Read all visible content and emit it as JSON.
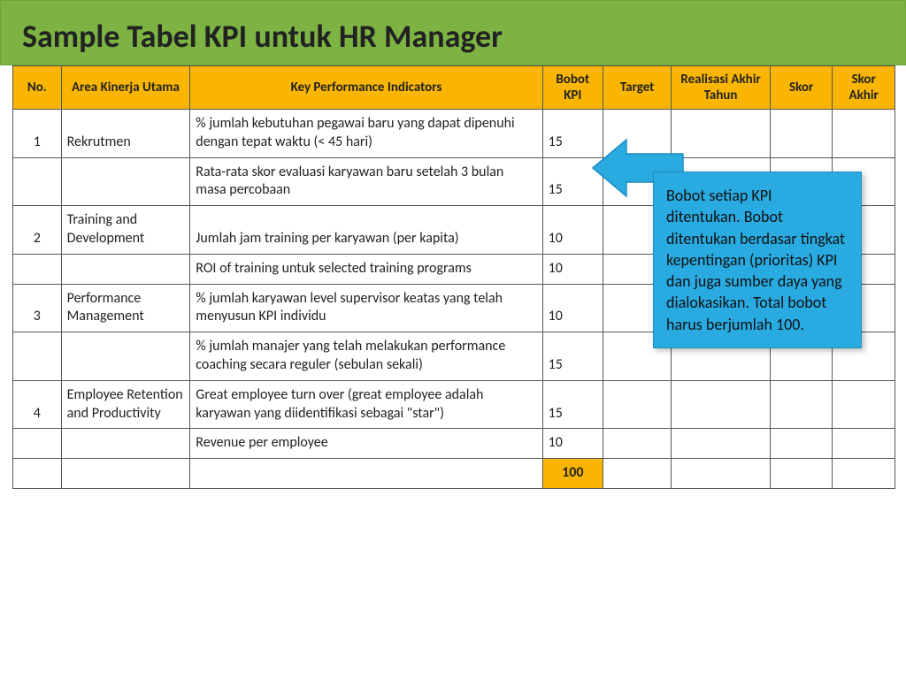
{
  "title": "Sample Tabel KPI untuk HR Manager",
  "colors": {
    "header_green": "#7cb342",
    "table_header": "#f9b500",
    "callout_blue": "#29abe2",
    "border": "#555555",
    "text": "#222222"
  },
  "columns": [
    "No.",
    "Area Kinerja Utama",
    "Key Performance Indicators",
    "Bobot KPI",
    "Target",
    "Realisasi Akhir Tahun",
    "Skor",
    "Skor Akhir"
  ],
  "rows": [
    {
      "no": "1",
      "area": "Rekrutmen",
      "kpi": "% jumlah kebutuhan pegawai baru yang dapat dipenuhi dengan tepat waktu (< 45 hari)",
      "bobot": "15"
    },
    {
      "no": "",
      "area": "",
      "kpi": "Rata-rata skor evaluasi karyawan baru setelah 3 bulan masa percobaan",
      "bobot": "15"
    },
    {
      "no": "2",
      "area": "Training and Development",
      "kpi": "Jumlah jam training per karyawan (per kapita)",
      "bobot": "10"
    },
    {
      "no": "",
      "area": "",
      "kpi": "ROI of training untuk selected training programs",
      "bobot": "10"
    },
    {
      "no": "3",
      "area": "Performance Management",
      "kpi": "% jumlah karyawan level supervisor keatas yang telah menyusun KPI individu",
      "bobot": "10"
    },
    {
      "no": "",
      "area": "",
      "kpi": "% jumlah manajer yang telah melakukan performance coaching secara reguler (sebulan sekali)",
      "bobot": "15"
    },
    {
      "no": "4",
      "area": "Employee Retention and Productivity",
      "kpi": "Great employee turn over (great employee adalah karyawan yang diidentifikasi sebagai \"star\")",
      "bobot": "15"
    },
    {
      "no": "",
      "area": "",
      "kpi": "Revenue per employee",
      "bobot": "10"
    }
  ],
  "total": "100",
  "callout": {
    "text": "Bobot setiap KPI ditentukan. Bobot ditentukan berdasar tingkat kepentingan (prioritas) KPI dan juga sumber daya yang dialokasikan. Total bobot harus berjumlah 100.",
    "arrow_fill": "#29abe2",
    "arrow_stroke": "#1b8fc0"
  }
}
